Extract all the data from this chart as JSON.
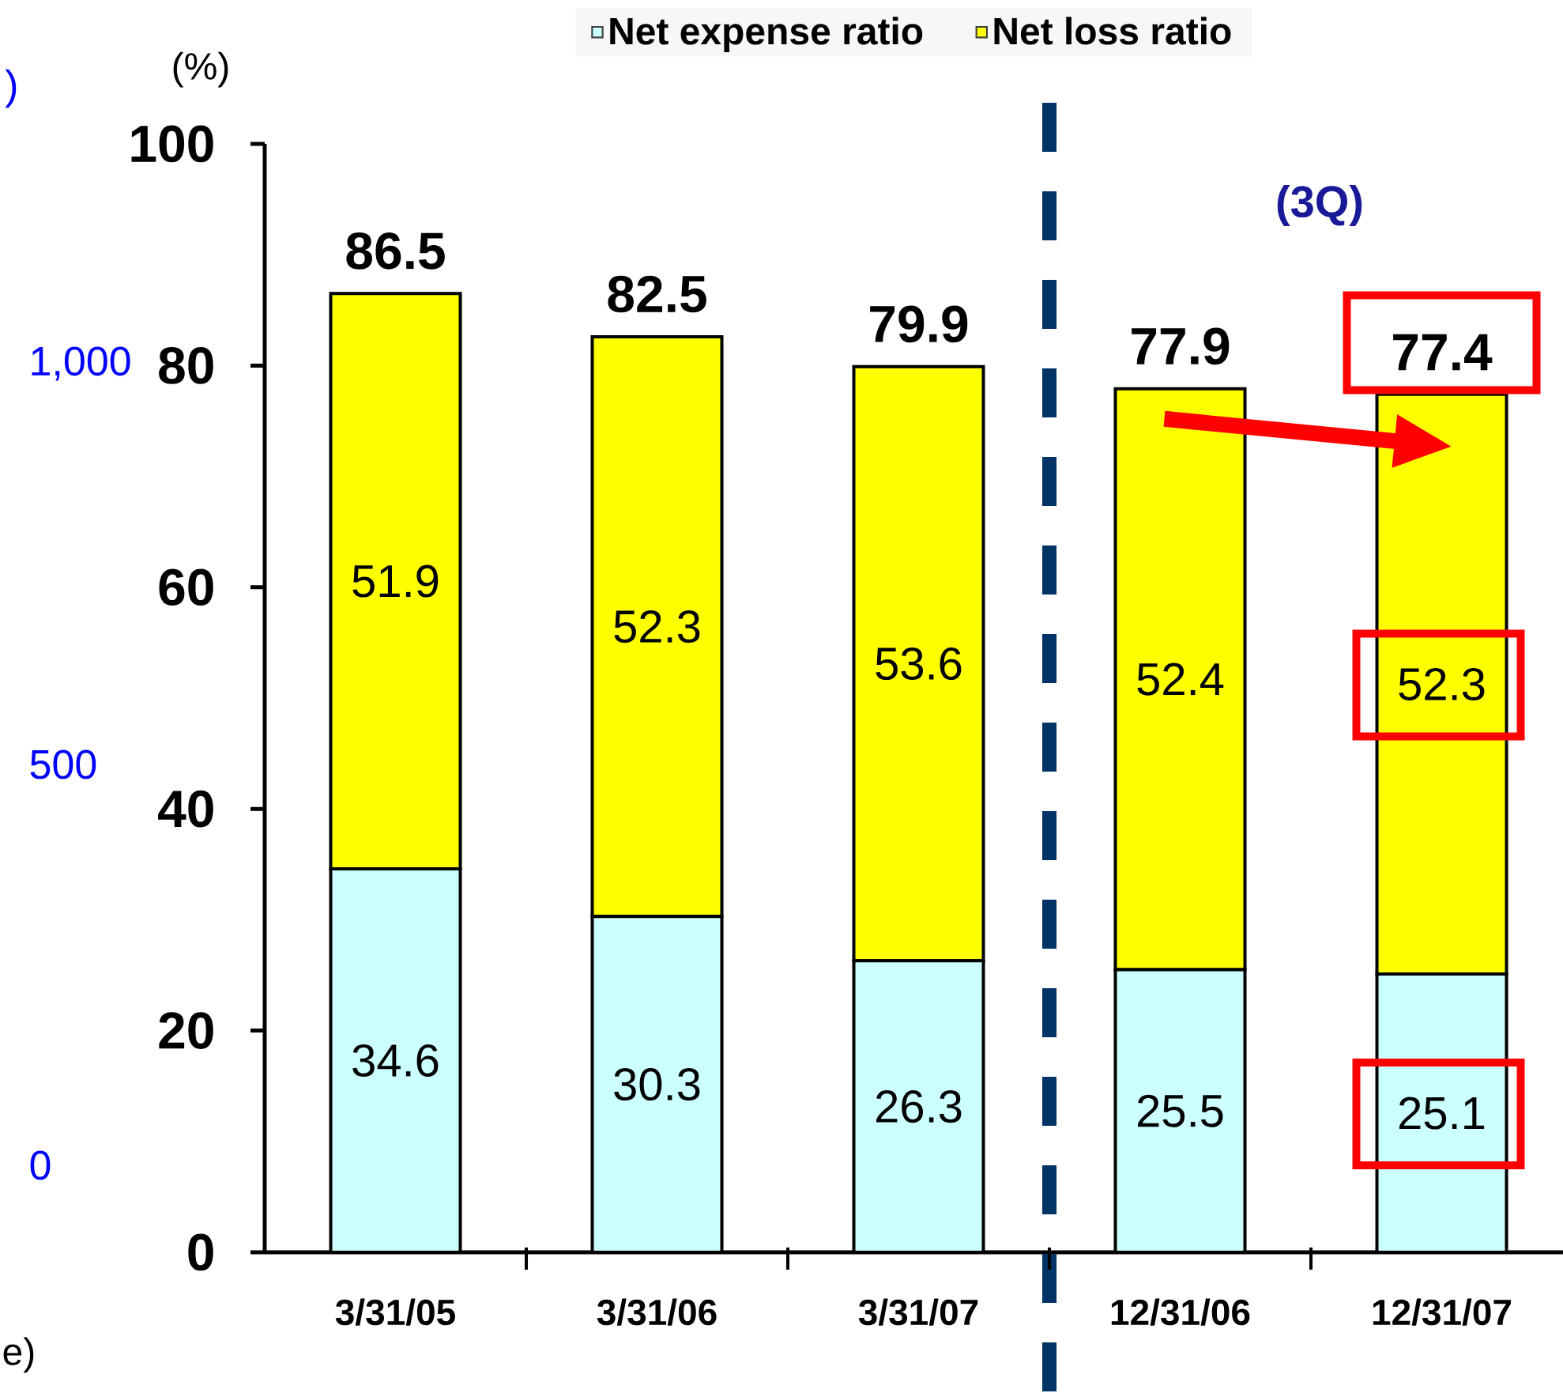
{
  "chart_data": {
    "type": "bar",
    "stacked": true,
    "categories": [
      "3/31/05",
      "3/31/06",
      "3/31/07",
      "12/31/06",
      "12/31/07"
    ],
    "series": [
      {
        "name": "Net expense ratio",
        "color": "#ccffff",
        "values": [
          34.6,
          30.3,
          26.3,
          25.5,
          25.1
        ]
      },
      {
        "name": "Net loss ratio",
        "color": "#ffff00",
        "values": [
          51.9,
          52.3,
          53.6,
          52.4,
          52.3
        ]
      }
    ],
    "totals": [
      "86.5",
      "82.5",
      "79.9",
      "77.9",
      "77.4"
    ],
    "data_labels": true,
    "ylabel": "(%)",
    "ylim": [
      0,
      100
    ],
    "yticks": [
      0,
      20,
      40,
      60,
      80,
      100
    ],
    "y2label": ")",
    "y2lim": [
      0,
      1000
    ],
    "y2ticks": [
      0,
      500,
      {
        "value": 1000,
        "label": "1,000"
      }
    ],
    "annotations": [
      "(3Q)",
      "e)"
    ],
    "legend": "top"
  }
}
